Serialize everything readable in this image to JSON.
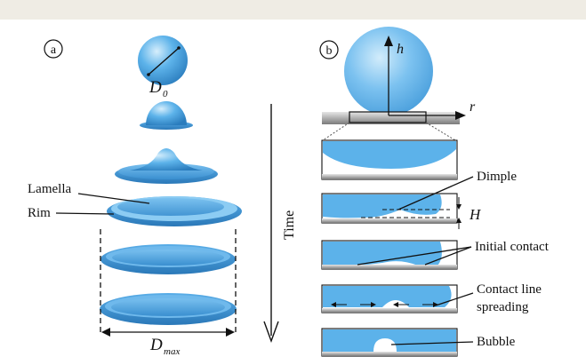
{
  "panel_a": {
    "label": "a",
    "drop_diameter": "D",
    "drop_diameter_sub": "0",
    "lamella_label": "Lamella",
    "rim_label": "Rim",
    "max_diameter": "D",
    "max_diameter_sub": "max"
  },
  "time_label": "Time",
  "panel_b": {
    "label": "b",
    "h_axis": "h",
    "r_axis": "r",
    "dimple_label": "Dimple",
    "height_label": "H",
    "initial_contact_label": "Initial contact",
    "contact_line_label_1": "Contact line",
    "contact_line_label_2": "spreading",
    "bubble_label": "Bubble"
  },
  "colors": {
    "drop_fill": "#4aa7e6",
    "drop_dark": "#2f7fbf",
    "drop_light": "#cfe9fb",
    "substrate": "#9a9a9a",
    "header_band": "#efece4"
  }
}
